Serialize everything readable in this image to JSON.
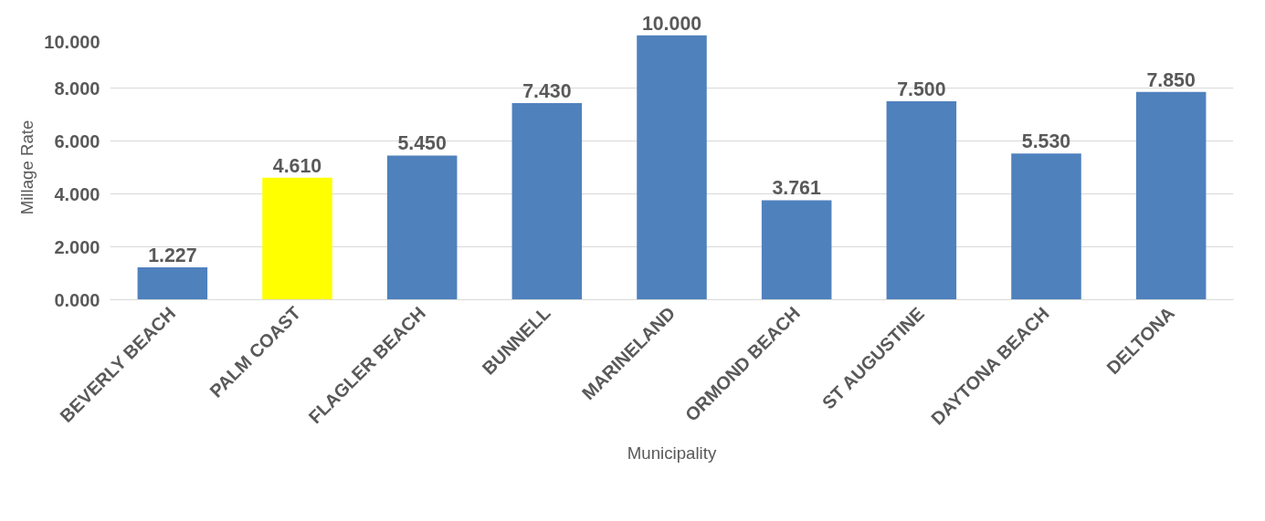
{
  "chart_data": {
    "type": "bar",
    "xlabel": "Municipality",
    "ylabel": "Millage Rate",
    "categories": [
      "BEVERLY BEACH",
      "PALM COAST",
      "FLAGLER BEACH",
      "BUNNELL",
      "MARINELAND",
      "ORMOND BEACH",
      "ST AUGUSTINE",
      "DAYTONA BEACH",
      "DELTONA"
    ],
    "values": [
      1.227,
      4.61,
      5.45,
      7.43,
      10.0,
      3.761,
      7.5,
      5.53,
      7.85
    ],
    "colors": [
      "#4f81bd",
      "#ffff00",
      "#4f81bd",
      "#4f81bd",
      "#4f81bd",
      "#4f81bd",
      "#4f81bd",
      "#4f81bd",
      "#4f81bd"
    ],
    "value_labels": [
      "1.227",
      "4.610",
      "5.450",
      "7.430",
      "10.000",
      "3.761",
      "7.500",
      "5.530",
      "7.850"
    ],
    "ylim": [
      0,
      10
    ],
    "yticks": [
      {
        "value": 0,
        "label": "0.000"
      },
      {
        "value": 2,
        "label": "2.000"
      },
      {
        "value": 4,
        "label": "4.000"
      },
      {
        "value": 6,
        "label": "6.000"
      },
      {
        "value": 8,
        "label": "8.000"
      },
      {
        "value": 10,
        "label": "10.000"
      }
    ],
    "grid": "y"
  }
}
